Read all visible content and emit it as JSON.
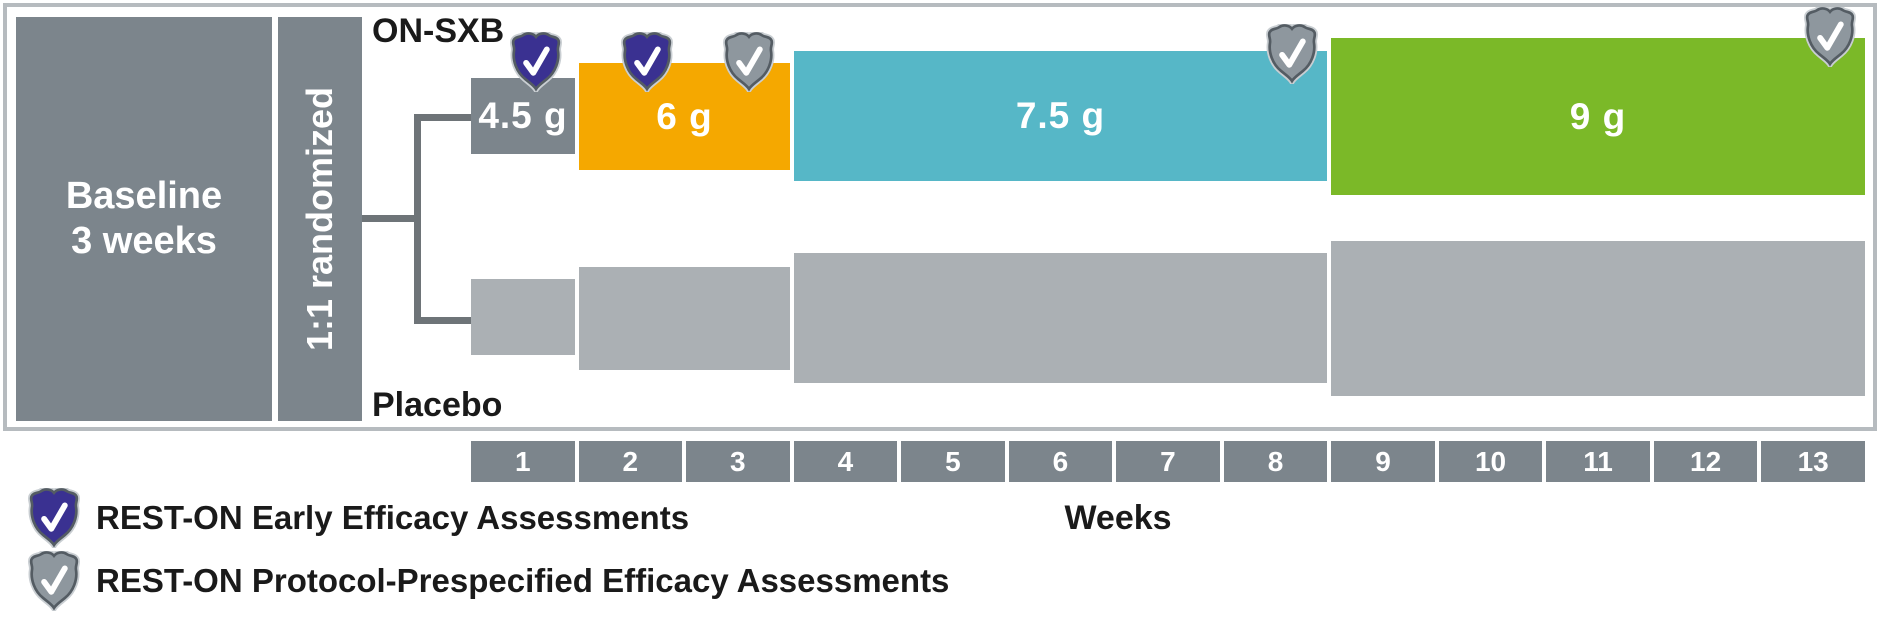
{
  "colors": {
    "dark_gray_box": "#7c858c",
    "placebo_gray": "#abb0b4",
    "dose_orange": "#f5a800",
    "dose_teal": "#56b7c7",
    "dose_green": "#7bb928",
    "shield_early_purple": "#3a3191",
    "shield_prespecified_gray": "#8e979e",
    "connector_line": "#6e7478",
    "frame_border": "#b6bbbf"
  },
  "diagram": {
    "baseline_line1": "Baseline",
    "baseline_line2": "3 weeks",
    "randomized_label": "1:1 randomized",
    "top_arm_label": "ON-SXB",
    "bottom_arm_label": "Placebo",
    "doses": [
      {
        "label": "4.5 g",
        "weeks_span": "1",
        "color": "#7c858c"
      },
      {
        "label": "6 g",
        "weeks_span": "2-3",
        "color": "#f5a800"
      },
      {
        "label": "7.5 g",
        "weeks_span": "4-8",
        "color": "#56b7c7"
      },
      {
        "label": "9 g",
        "weeks_span": "9-13",
        "color": "#7bb928"
      }
    ],
    "placebo_color": "#abb0b4",
    "shield_markers": [
      {
        "at_week": "1",
        "type": "early"
      },
      {
        "at_week": "2",
        "type": "early"
      },
      {
        "at_week": "3",
        "type": "prespecified"
      },
      {
        "at_week": "8",
        "type": "prespecified"
      },
      {
        "at_week": "13",
        "type": "prespecified"
      }
    ],
    "week_numbers": [
      "1",
      "2",
      "3",
      "4",
      "5",
      "6",
      "7",
      "8",
      "9",
      "10",
      "11",
      "12",
      "13"
    ],
    "weeks_axis_label": "Weeks"
  },
  "legend": {
    "items": [
      {
        "icon": "purple-shield-check-icon",
        "color": "#3a3191",
        "label": "REST-ON Early Efficacy Assessments"
      },
      {
        "icon": "gray-shield-check-icon",
        "color": "#8e979e",
        "label": "REST-ON Protocol-Prespecified Efficacy Assessments"
      }
    ]
  }
}
